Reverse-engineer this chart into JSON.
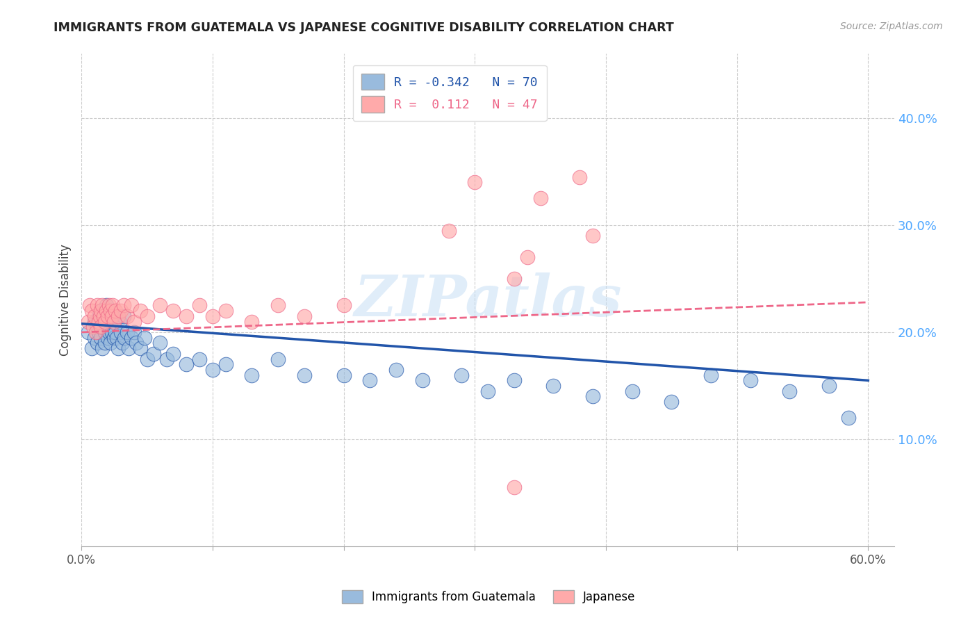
{
  "title": "IMMIGRANTS FROM GUATEMALA VS JAPANESE COGNITIVE DISABILITY CORRELATION CHART",
  "source": "Source: ZipAtlas.com",
  "ylabel": "Cognitive Disability",
  "ytick_labels": [
    "10.0%",
    "20.0%",
    "30.0%",
    "40.0%"
  ],
  "ytick_vals": [
    0.1,
    0.2,
    0.3,
    0.4
  ],
  "xtick_vals": [
    0.0,
    0.1,
    0.2,
    0.3,
    0.4,
    0.5,
    0.6
  ],
  "xtick_labels_show": [
    "0.0%",
    "",
    "",
    "",
    "",
    "",
    "60.0%"
  ],
  "xlim": [
    0.0,
    0.62
  ],
  "ylim": [
    0.0,
    0.46
  ],
  "legend_blue_r": "-0.342",
  "legend_blue_n": "70",
  "legend_pink_r": "0.112",
  "legend_pink_n": "47",
  "blue_color": "#99BBDD",
  "pink_color": "#FFAAAA",
  "blue_line_color": "#2255AA",
  "pink_line_color": "#EE6688",
  "watermark": "ZIPatlas",
  "blue_points_x": [
    0.005,
    0.008,
    0.01,
    0.01,
    0.012,
    0.012,
    0.013,
    0.013,
    0.015,
    0.015,
    0.015,
    0.016,
    0.016,
    0.017,
    0.018,
    0.018,
    0.019,
    0.02,
    0.02,
    0.021,
    0.021,
    0.022,
    0.022,
    0.023,
    0.024,
    0.025,
    0.025,
    0.026,
    0.027,
    0.028,
    0.029,
    0.03,
    0.031,
    0.032,
    0.033,
    0.035,
    0.036,
    0.038,
    0.04,
    0.042,
    0.045,
    0.048,
    0.05,
    0.055,
    0.06,
    0.065,
    0.07,
    0.08,
    0.09,
    0.1,
    0.11,
    0.13,
    0.15,
    0.17,
    0.2,
    0.22,
    0.24,
    0.26,
    0.29,
    0.31,
    0.33,
    0.36,
    0.39,
    0.42,
    0.45,
    0.48,
    0.51,
    0.54,
    0.57,
    0.585
  ],
  "blue_points_y": [
    0.2,
    0.185,
    0.21,
    0.195,
    0.205,
    0.19,
    0.215,
    0.2,
    0.195,
    0.21,
    0.22,
    0.205,
    0.185,
    0.215,
    0.2,
    0.19,
    0.225,
    0.205,
    0.195,
    0.215,
    0.2,
    0.21,
    0.19,
    0.2,
    0.215,
    0.195,
    0.21,
    0.2,
    0.195,
    0.185,
    0.21,
    0.2,
    0.19,
    0.215,
    0.195,
    0.2,
    0.185,
    0.195,
    0.2,
    0.19,
    0.185,
    0.195,
    0.175,
    0.18,
    0.19,
    0.175,
    0.18,
    0.17,
    0.175,
    0.165,
    0.17,
    0.16,
    0.175,
    0.16,
    0.16,
    0.155,
    0.165,
    0.155,
    0.16,
    0.145,
    0.155,
    0.15,
    0.14,
    0.145,
    0.135,
    0.16,
    0.155,
    0.145,
    0.15,
    0.12
  ],
  "pink_points_x": [
    0.005,
    0.006,
    0.008,
    0.009,
    0.01,
    0.011,
    0.012,
    0.013,
    0.014,
    0.015,
    0.015,
    0.016,
    0.017,
    0.018,
    0.019,
    0.02,
    0.021,
    0.022,
    0.023,
    0.024,
    0.025,
    0.026,
    0.028,
    0.03,
    0.032,
    0.035,
    0.038,
    0.04,
    0.045,
    0.05,
    0.06,
    0.07,
    0.08,
    0.09,
    0.1,
    0.11,
    0.13,
    0.15,
    0.17,
    0.2,
    0.28,
    0.3,
    0.35,
    0.39,
    0.34,
    0.33,
    0.38
  ],
  "pink_points_y": [
    0.21,
    0.225,
    0.22,
    0.205,
    0.215,
    0.2,
    0.225,
    0.21,
    0.215,
    0.22,
    0.205,
    0.225,
    0.215,
    0.21,
    0.22,
    0.215,
    0.225,
    0.22,
    0.215,
    0.225,
    0.21,
    0.22,
    0.215,
    0.22,
    0.225,
    0.215,
    0.225,
    0.21,
    0.22,
    0.215,
    0.225,
    0.22,
    0.215,
    0.225,
    0.215,
    0.22,
    0.21,
    0.225,
    0.215,
    0.225,
    0.295,
    0.34,
    0.325,
    0.29,
    0.27,
    0.25,
    0.345
  ],
  "pink_outlier_x": [
    0.33
  ],
  "pink_outlier_y": [
    0.055
  ],
  "blue_line_x0": 0.0,
  "blue_line_x1": 0.6,
  "blue_line_y0": 0.208,
  "blue_line_y1": 0.155,
  "pink_line_x0": 0.0,
  "pink_line_x1": 0.6,
  "pink_line_y0": 0.2,
  "pink_line_y1": 0.228
}
